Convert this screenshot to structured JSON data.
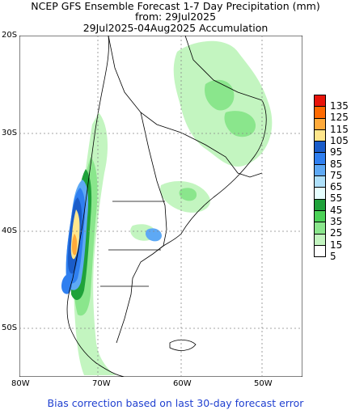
{
  "title": {
    "line1": "NCEP GFS Ensemble Forecast 1-7 Day Precipitation (mm)",
    "line2": "from: 29Jul2025",
    "line3": "29Jul2025-04Aug2025 Accumulation"
  },
  "footer": "Bias correction based on last 30-day forecast error",
  "axes": {
    "lat_labels": [
      "20S",
      "30S",
      "40S",
      "50S"
    ],
    "lon_labels": [
      "80W",
      "70W",
      "60W",
      "50W"
    ],
    "grid": "dotted"
  },
  "legend": {
    "levels": [
      "135",
      "125",
      "115",
      "105",
      "95",
      "85",
      "75",
      "65",
      "55",
      "45",
      "35",
      "25",
      "15",
      "5"
    ],
    "colors": [
      "#e8140a",
      "#ff6a00",
      "#ffaa3a",
      "#ffe68c",
      "#1a5cc9",
      "#2f7ff0",
      "#5ea9f5",
      "#aee0fa",
      "#e6ffff",
      "#1fa23a",
      "#4bd257",
      "#8ae68c",
      "#c3f5c0",
      "#ffffff"
    ]
  }
}
